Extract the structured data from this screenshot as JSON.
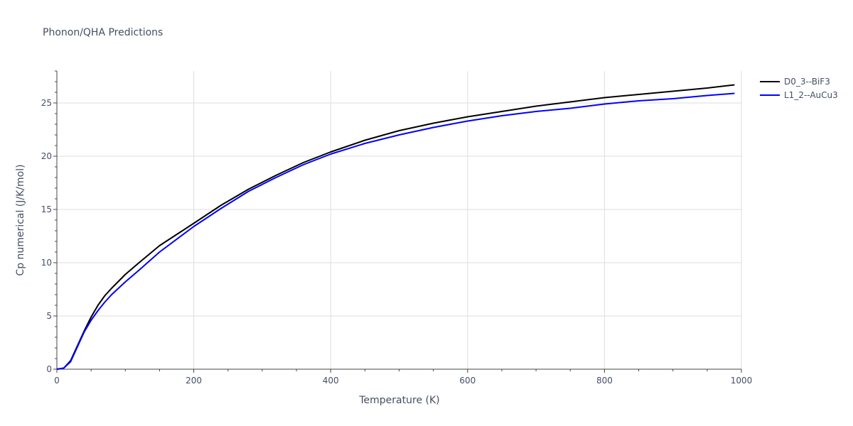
{
  "chart_data": {
    "type": "line",
    "title": "Phonon/QHA Predictions",
    "xlabel": "Temperature (K)",
    "ylabel": "Cp numerical (J/K/mol)",
    "xlim": [
      0,
      1000
    ],
    "ylim": [
      0,
      28
    ],
    "x_ticks": [
      0,
      200,
      400,
      600,
      800,
      1000
    ],
    "y_ticks": [
      0,
      5,
      10,
      15,
      20,
      25
    ],
    "grid": true,
    "legend_position": "top-right",
    "series": [
      {
        "name": "D0_3--BiF3",
        "color": "#000000",
        "x": [
          0,
          10,
          20,
          30,
          40,
          50,
          60,
          70,
          80,
          100,
          120,
          150,
          200,
          240,
          280,
          320,
          360,
          400,
          450,
          500,
          550,
          600,
          650,
          700,
          750,
          800,
          850,
          900,
          950,
          990
        ],
        "y": [
          0,
          0.1,
          0.8,
          2.2,
          3.6,
          4.9,
          6.0,
          6.9,
          7.6,
          8.9,
          10.0,
          11.6,
          13.7,
          15.4,
          16.9,
          18.2,
          19.4,
          20.4,
          21.5,
          22.4,
          23.1,
          23.7,
          24.2,
          24.7,
          25.1,
          25.5,
          25.8,
          26.1,
          26.4,
          26.7
        ]
      },
      {
        "name": "L1_2--AuCu3",
        "color": "#0000ff",
        "x": [
          0,
          10,
          20,
          30,
          40,
          50,
          60,
          70,
          80,
          100,
          120,
          150,
          200,
          240,
          280,
          320,
          360,
          400,
          450,
          500,
          550,
          600,
          650,
          700,
          750,
          800,
          850,
          900,
          950,
          990
        ],
        "y": [
          0,
          0.1,
          0.7,
          2.1,
          3.5,
          4.6,
          5.5,
          6.3,
          7.0,
          8.2,
          9.3,
          11.0,
          13.4,
          15.1,
          16.7,
          18.0,
          19.2,
          20.2,
          21.2,
          22.0,
          22.7,
          23.3,
          23.8,
          24.2,
          24.5,
          24.9,
          25.2,
          25.4,
          25.7,
          25.9
        ]
      }
    ]
  }
}
